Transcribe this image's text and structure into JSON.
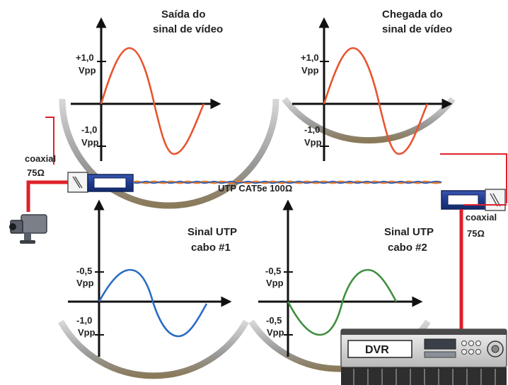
{
  "colors": {
    "red_wave": "#e8542f",
    "blue_wave": "#2a6cc4",
    "green_wave": "#3f8f3f",
    "cable_orange": "#e87a2a",
    "cable_blue": "#3b5ea8",
    "wire_red": "#e0202a",
    "balun_blue": "#1f3b8f"
  },
  "scope_top_left": {
    "title_line1": "Saída do",
    "title_line2": "sinal de vídeo",
    "upper_value": "+1,0",
    "upper_unit": "Vpp",
    "lower_value": "-1,0",
    "lower_unit": "Vpp"
  },
  "scope_top_right": {
    "title_line1": "Chegada do",
    "title_line2": "sinal de vídeo",
    "upper_value": "+1,0",
    "upper_unit": "Vpp",
    "lower_value": "-1,0",
    "lower_unit": "Vpp"
  },
  "scope_bottom_left": {
    "title_line1": "Sinal UTP",
    "title_line2": "cabo #1",
    "upper_value": "-0,5",
    "upper_unit": "Vpp",
    "lower_value": "-1,0",
    "lower_unit": "Vpp"
  },
  "scope_bottom_right": {
    "title_line1": "Sinal UTP",
    "title_line2": "cabo #2",
    "upper_value": "-0,5",
    "upper_unit": "Vpp",
    "lower_value": "-0,5",
    "lower_unit": "Vpp"
  },
  "left_connection": {
    "type": "coaxial",
    "impedance": "75Ω"
  },
  "right_connection": {
    "type": "coaxial",
    "impedance": "75Ω"
  },
  "cable": {
    "label": "UTP CAT5e 100Ω"
  },
  "recorder": {
    "label": "DVR"
  }
}
